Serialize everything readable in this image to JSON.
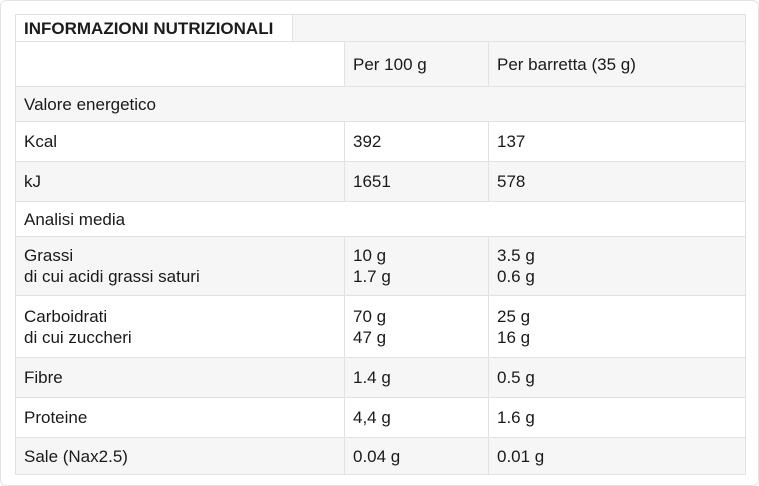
{
  "title": "INFORMAZIONI NUTRIZIONALI",
  "columns": {
    "label": "",
    "per100": "Per 100 g",
    "per_bar": "Per barretta (35 g)"
  },
  "sections": {
    "energy": "Valore energetico",
    "analysis": "Analisi media"
  },
  "rows": [
    {
      "label": "Kcal",
      "per100": "392",
      "per_bar": "137"
    },
    {
      "label": "kJ",
      "per100": "1651",
      "per_bar": "578"
    },
    {
      "label": "Grassi",
      "sublabel": "di cui acidi grassi saturi",
      "per100": "10 g",
      "per100_sub": "1.7 g",
      "per_bar": "3.5 g",
      "per_bar_sub": "0.6 g"
    },
    {
      "label": "Carboidrati",
      "sublabel": "di cui zuccheri",
      "per100": "70 g",
      "per100_sub": "47 g",
      "per_bar": "25 g",
      "per_bar_sub": "16 g"
    },
    {
      "label": "Fibre",
      "per100": "1.4 g",
      "per_bar": "0.5 g"
    },
    {
      "label": "Proteine",
      "per100": "4,4 g",
      "per_bar": "1.6 g"
    },
    {
      "label": "Sale (Nax2.5)",
      "per100": "0.04 g",
      "per_bar": "0.01 g"
    }
  ],
  "colors": {
    "stripe": "#f6f6f6",
    "grid_line": "#e2e2e2",
    "page_border": "#e3e3e3",
    "text": "#1a1a1a",
    "background": "#ffffff"
  }
}
